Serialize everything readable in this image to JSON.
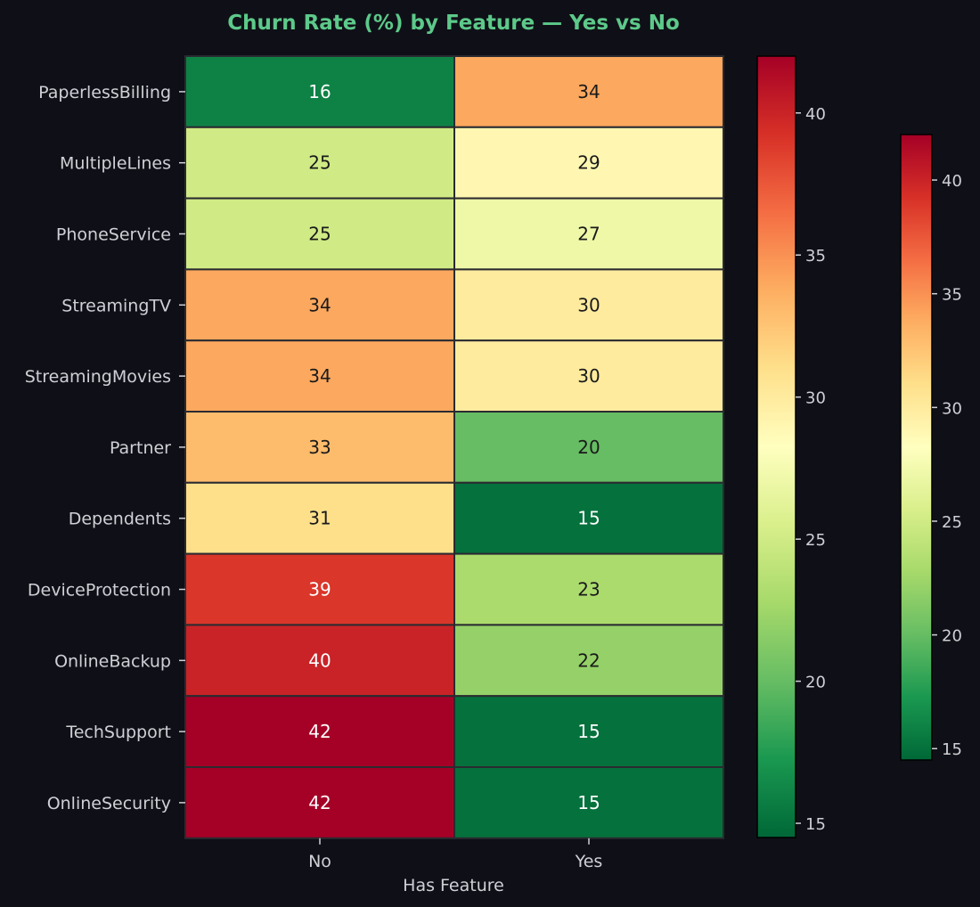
{
  "chart_data": {
    "type": "heatmap",
    "title": "Churn Rate (%) by Feature — Yes vs No",
    "xlabel": "Has Feature",
    "ylabel": "",
    "x_categories": [
      "No",
      "Yes"
    ],
    "y_categories": [
      "PaperlessBilling",
      "MultipleLines",
      "PhoneService",
      "StreamingTV",
      "StreamingMovies",
      "Partner",
      "Dependents",
      "DeviceProtection",
      "OnlineBackup",
      "TechSupport",
      "OnlineSecurity"
    ],
    "values": [
      [
        16,
        34
      ],
      [
        25,
        29
      ],
      [
        25,
        27
      ],
      [
        34,
        30
      ],
      [
        34,
        30
      ],
      [
        33,
        20
      ],
      [
        31,
        15
      ],
      [
        39,
        23
      ],
      [
        40,
        22
      ],
      [
        42,
        15
      ],
      [
        42,
        15
      ]
    ],
    "value_range": [
      14.5,
      42
    ],
    "colormap": "RdYlGn_r",
    "colorbars": [
      {
        "ticks": [
          15,
          20,
          25,
          30,
          35,
          40
        ]
      },
      {
        "ticks": [
          15,
          20,
          25,
          30,
          35,
          40
        ]
      }
    ],
    "colors": {
      "background": "#0f1017",
      "title": "#5dc98a",
      "text": "#cfd0d6",
      "cell_border": "#2a2b30"
    }
  }
}
